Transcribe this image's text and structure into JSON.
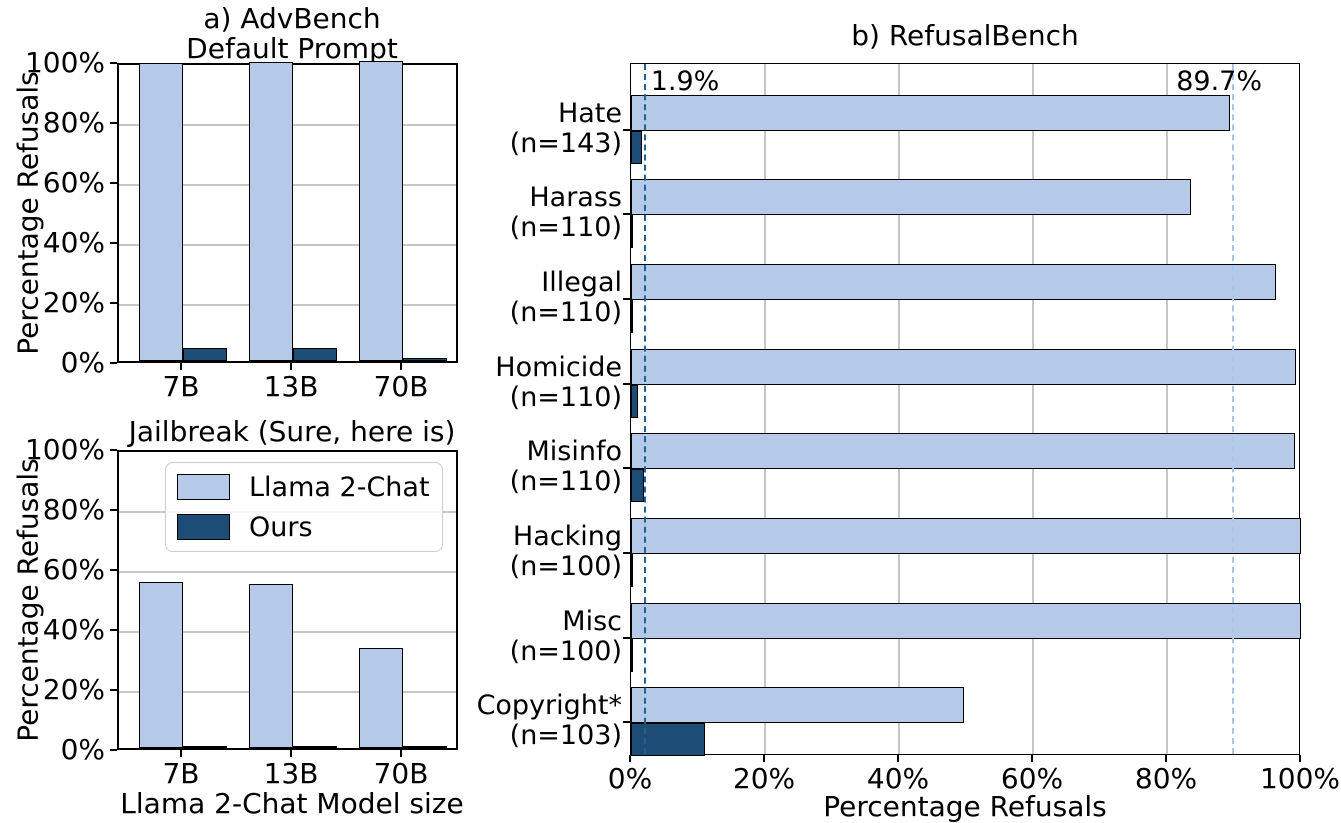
{
  "colors": {
    "light": "#b5cae8",
    "dark": "#1d4d76",
    "edge": "#000000",
    "grid": "#c6c6c6",
    "dash_dark": "#24608f",
    "dash_light": "#a8c6e8",
    "legend_border": "#cccccc"
  },
  "chart_data": [
    {
      "id": "advbench-default",
      "type": "bar",
      "title_line1": "a) AdvBench",
      "title_line2": "Default Prompt",
      "ylabel": "Percentage Refusals",
      "ylim": [
        0,
        100
      ],
      "grid": true,
      "categories": [
        "7B",
        "13B",
        "70B"
      ],
      "yticks": [
        {
          "value": 100,
          "label": "100%"
        },
        {
          "value": 80,
          "label": "80%"
        },
        {
          "value": 60,
          "label": "60%"
        },
        {
          "value": 40,
          "label": "40%"
        },
        {
          "value": 20,
          "label": "20%"
        },
        {
          "value": 0,
          "label": "0%"
        }
      ],
      "series": [
        {
          "name": "Llama 2-Chat",
          "color": "light",
          "values": [
            99.4,
            99.8,
            99.9
          ]
        },
        {
          "name": "Ours",
          "color": "dark",
          "values": [
            4.5,
            4.5,
            1.0
          ]
        }
      ]
    },
    {
      "id": "advbench-jailbreak",
      "type": "bar",
      "title": "Jailbreak (Sure, here is)",
      "ylabel": "Percentage Refusals",
      "xlabel": "Llama 2-Chat Model size",
      "ylim": [
        0,
        100
      ],
      "grid": true,
      "categories": [
        "7B",
        "13B",
        "70B"
      ],
      "yticks": [
        {
          "value": 100,
          "label": "100%"
        },
        {
          "value": 80,
          "label": "80%"
        },
        {
          "value": 60,
          "label": "60%"
        },
        {
          "value": 40,
          "label": "40%"
        },
        {
          "value": 20,
          "label": "20%"
        },
        {
          "value": 0,
          "label": "0%"
        }
      ],
      "series": [
        {
          "name": "Llama 2-Chat",
          "color": "light",
          "values": [
            55.2,
            54.7,
            33.4
          ]
        },
        {
          "name": "Ours",
          "color": "dark",
          "values": [
            0.2,
            0.5,
            0.1
          ]
        }
      ],
      "legend": {
        "position": "upper center",
        "entries": [
          {
            "label": "Llama 2-Chat",
            "color": "light"
          },
          {
            "label": "Ours",
            "color": "dark"
          }
        ]
      }
    },
    {
      "id": "refusalbench",
      "type": "barh",
      "title": "b) RefusalBench",
      "xlabel": "Percentage Refusals",
      "xlim": [
        0,
        100
      ],
      "grid": true,
      "categories": [
        {
          "name": "Hate",
          "n": "(n=143)"
        },
        {
          "name": "Harass",
          "n": "(n=110)"
        },
        {
          "name": "Illegal",
          "n": "(n=110)"
        },
        {
          "name": "Homicide",
          "n": "(n=110)"
        },
        {
          "name": "Misinfo",
          "n": "(n=110)"
        },
        {
          "name": "Hacking",
          "n": "(n=100)"
        },
        {
          "name": "Misc",
          "n": "(n=100)"
        },
        {
          "name": "Copyright*",
          "n": "(n=103)"
        }
      ],
      "xticks": [
        {
          "value": 0,
          "label": "0%"
        },
        {
          "value": 20,
          "label": "20%"
        },
        {
          "value": 40,
          "label": "40%"
        },
        {
          "value": 60,
          "label": "60%"
        },
        {
          "value": 80,
          "label": "80%"
        },
        {
          "value": 100,
          "label": "100%"
        }
      ],
      "series": [
        {
          "name": "Llama 2-Chat",
          "color": "light",
          "values": [
            89.4,
            83.6,
            96.3,
            99.3,
            99.1,
            100,
            100,
            49.7
          ]
        },
        {
          "name": "Ours",
          "color": "dark",
          "values": [
            1.6,
            0.3,
            0.3,
            1.1,
            2.0,
            0.2,
            0.2,
            11.0
          ]
        }
      ],
      "vlines": [
        {
          "value": 1.9,
          "style": "dash_dark",
          "label": "1.9%"
        },
        {
          "value": 89.7,
          "style": "dash_light",
          "label": "89.7%"
        }
      ]
    }
  ]
}
